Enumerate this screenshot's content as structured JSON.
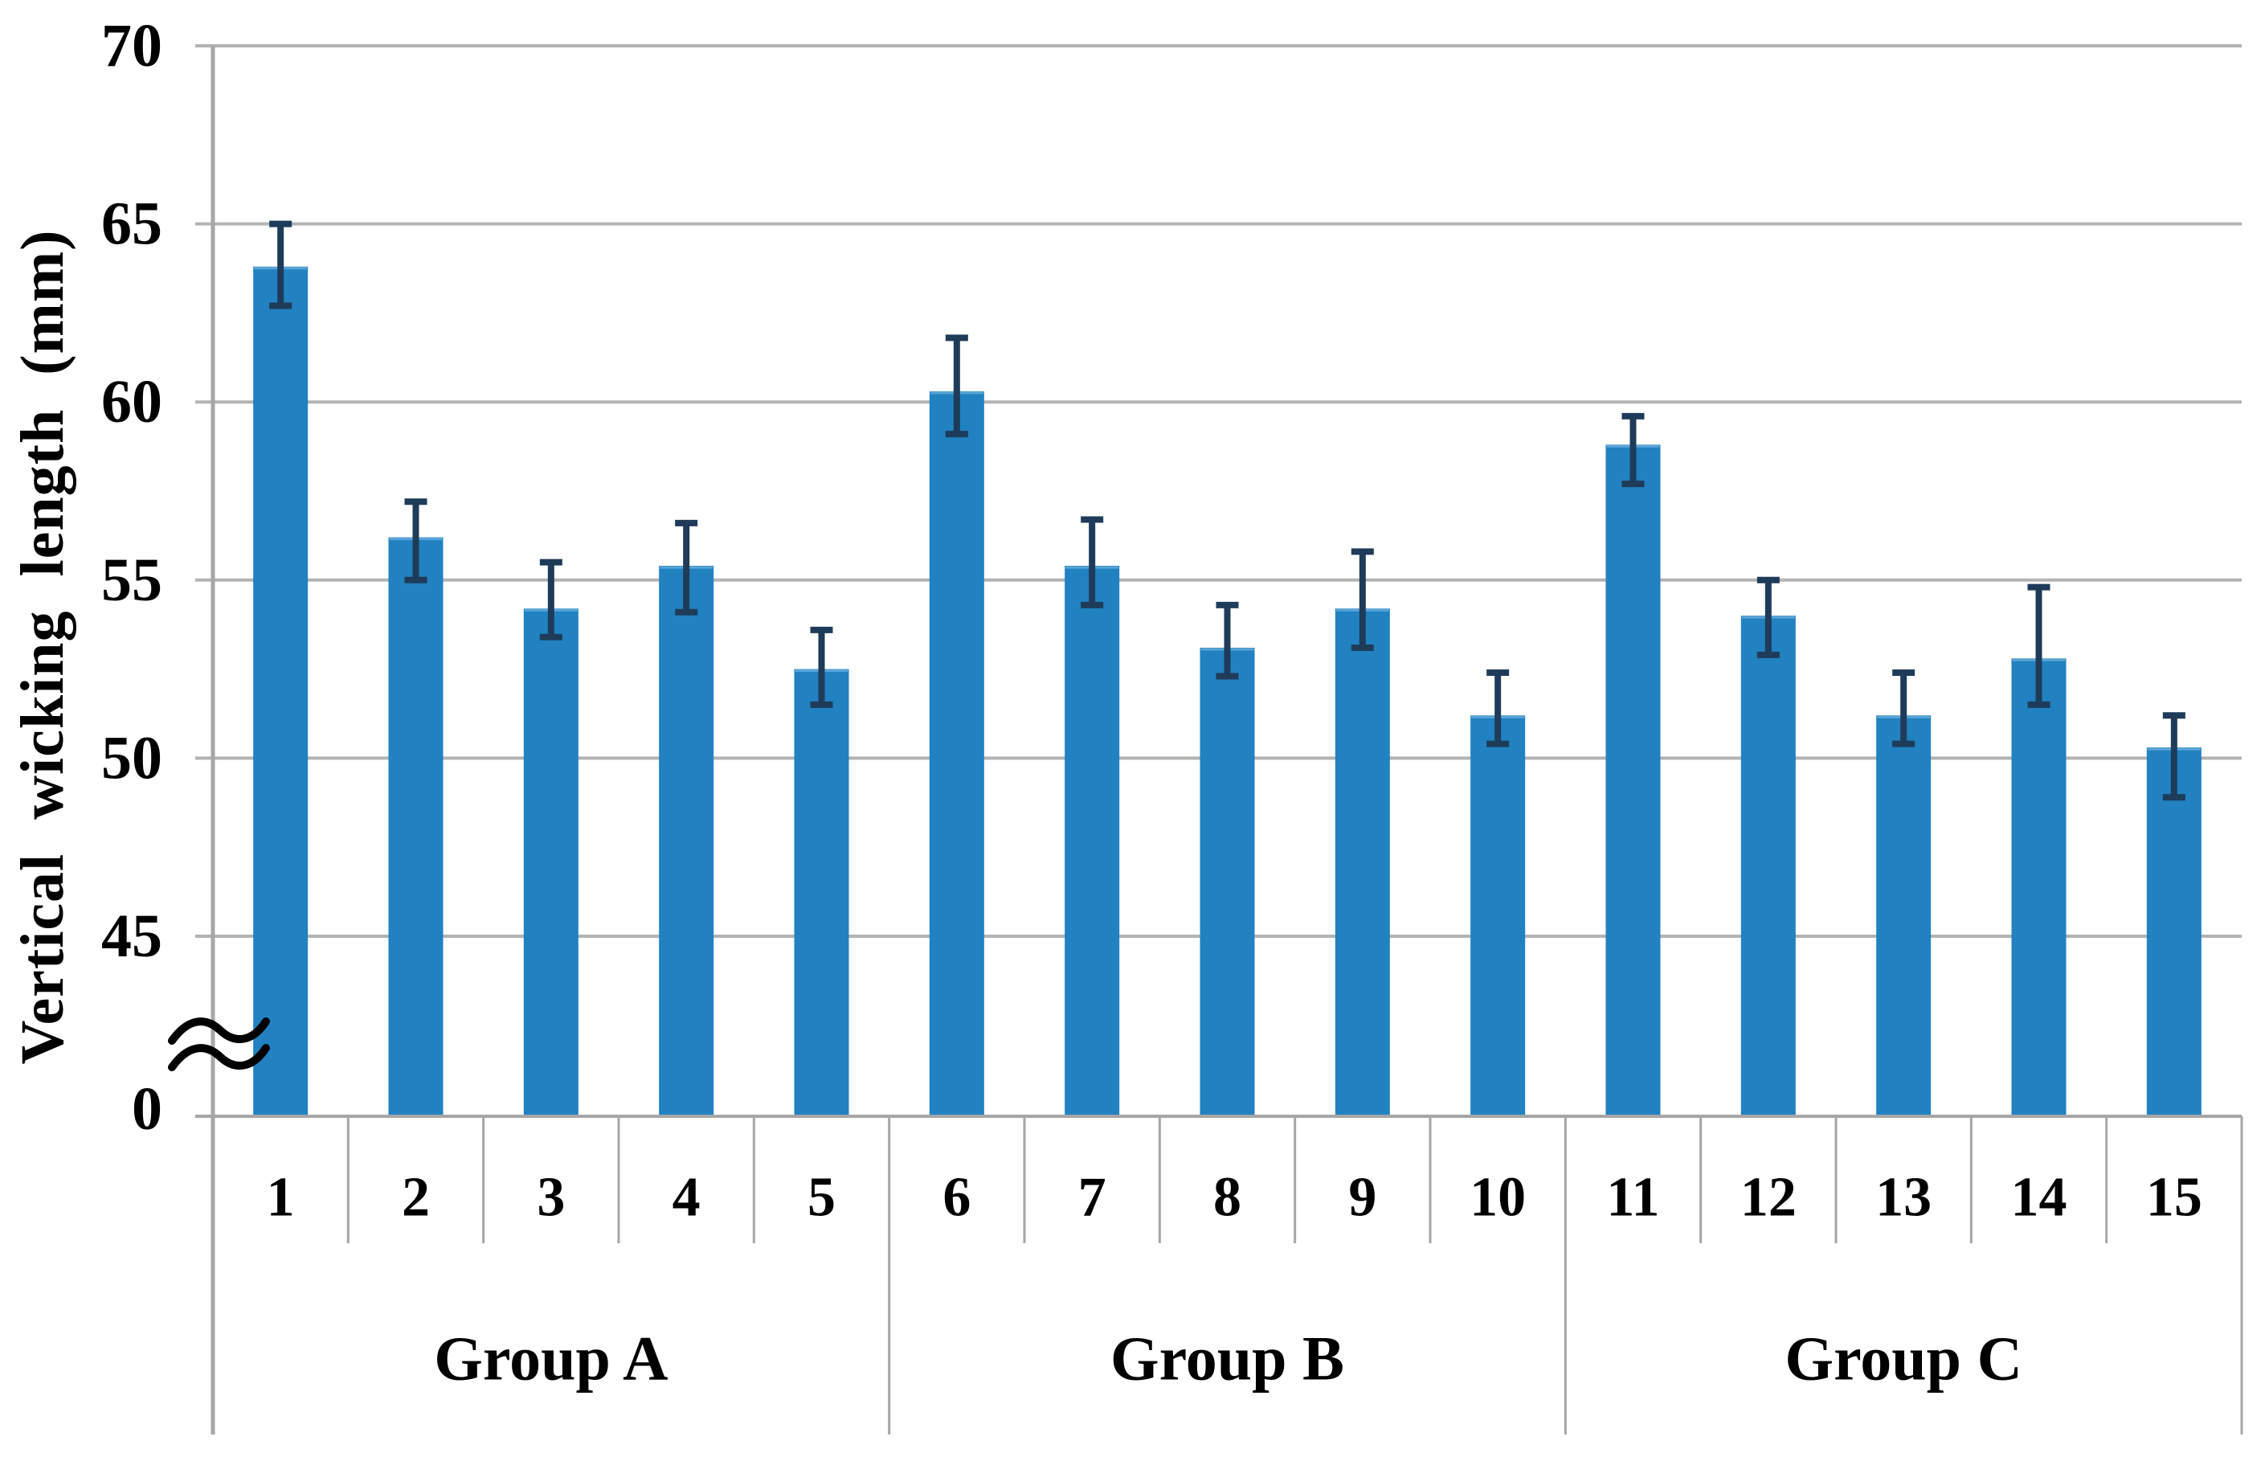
{
  "colors": {
    "bar_fill": "#2181c1",
    "bar_edge_light": "#5aa5d8",
    "error_bar": "#1e3c59",
    "gridline": "#b3b3b3",
    "axis_line": "#a6a6a6",
    "divider_line": "#a6a6a6",
    "text": "#000000",
    "background": "#ffffff"
  },
  "chart_data": {
    "type": "bar",
    "title": "",
    "xlabel": "",
    "ylabel": "Vertical wicking length (mm)",
    "grid": true,
    "legend_position": "none",
    "y_axis": {
      "ticks": [
        0,
        45,
        50,
        55,
        60,
        65,
        70
      ],
      "linear_range": [
        45,
        70
      ],
      "axis_break": true,
      "break_symbol": "≈",
      "break_between": [
        0,
        45
      ]
    },
    "categories": [
      "1",
      "2",
      "3",
      "4",
      "5",
      "6",
      "7",
      "8",
      "9",
      "10",
      "11",
      "12",
      "13",
      "14",
      "15"
    ],
    "values": [
      63.8,
      56.2,
      54.2,
      55.4,
      52.5,
      60.3,
      55.4,
      53.1,
      54.2,
      51.2,
      58.8,
      54.0,
      51.2,
      52.8,
      50.3
    ],
    "error_high": [
      65.0,
      57.2,
      55.5,
      56.6,
      53.6,
      61.8,
      56.7,
      54.3,
      55.8,
      52.4,
      59.6,
      55.0,
      52.4,
      54.8,
      51.2
    ],
    "error_low": [
      62.7,
      55.0,
      53.4,
      54.1,
      51.5,
      59.1,
      54.3,
      52.3,
      53.1,
      50.4,
      57.7,
      52.9,
      50.4,
      51.5,
      48.9
    ],
    "groups": [
      {
        "label": "Group A",
        "count": 5
      },
      {
        "label": "Group B",
        "count": 5
      },
      {
        "label": "Group C",
        "count": 5
      }
    ]
  }
}
